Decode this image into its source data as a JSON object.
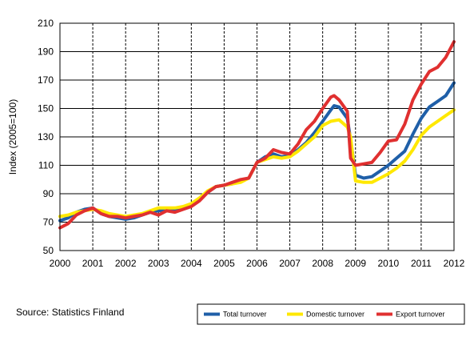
{
  "source": "Source: Statistics Finland",
  "chart_data": {
    "type": "line",
    "ylabel": "Index (2005=100)",
    "xlabel": "",
    "ylim": [
      50,
      210
    ],
    "yticks": [
      50,
      70,
      90,
      110,
      130,
      150,
      170,
      190,
      210
    ],
    "xlim": [
      2000,
      2012
    ],
    "xticks": [
      "2000",
      "2001",
      "2002",
      "2003",
      "2004",
      "2005",
      "2006",
      "2007",
      "2008",
      "2009",
      "2010",
      "2011",
      "2012"
    ],
    "grid": "dashed vertical at years, solid horizontal at y ticks",
    "legend_position": "bottom-right",
    "series": [
      {
        "name": "Total turnover",
        "color": "#1f5fa8",
        "x": [
          2000.0,
          2000.25,
          2000.5,
          2000.75,
          2001.0,
          2001.25,
          2001.5,
          2001.75,
          2002.0,
          2002.25,
          2002.5,
          2002.75,
          2003.0,
          2003.25,
          2003.5,
          2003.75,
          2004.0,
          2004.25,
          2004.5,
          2004.75,
          2005.0,
          2005.25,
          2005.5,
          2005.75,
          2006.0,
          2006.25,
          2006.5,
          2006.75,
          2007.0,
          2007.25,
          2007.5,
          2007.75,
          2008.0,
          2008.25,
          2008.35,
          2008.5,
          2008.75,
          2008.85,
          2009.0,
          2009.25,
          2009.5,
          2009.75,
          2010.0,
          2010.25,
          2010.5,
          2010.75,
          2011.0,
          2011.25,
          2011.5,
          2011.75,
          2012.0
        ],
        "values": [
          71,
          73,
          77,
          79,
          80,
          76,
          74,
          73,
          72,
          73,
          75,
          77,
          78,
          78,
          79,
          80,
          82,
          86,
          91,
          95,
          96,
          97,
          99,
          101,
          112,
          116,
          118,
          116,
          117,
          121,
          126,
          133,
          141,
          149,
          152,
          151,
          143,
          128,
          103,
          101,
          102,
          106,
          110,
          115,
          120,
          132,
          143,
          151,
          155,
          159,
          168
        ]
      },
      {
        "name": "Domestic turnover",
        "color": "#ffe800",
        "x": [
          2000.0,
          2000.25,
          2000.5,
          2000.75,
          2001.0,
          2001.25,
          2001.5,
          2001.75,
          2002.0,
          2002.25,
          2002.5,
          2002.75,
          2003.0,
          2003.25,
          2003.5,
          2003.75,
          2004.0,
          2004.25,
          2004.5,
          2004.75,
          2005.0,
          2005.25,
          2005.5,
          2005.75,
          2006.0,
          2006.25,
          2006.5,
          2006.75,
          2007.0,
          2007.25,
          2007.5,
          2007.75,
          2008.0,
          2008.25,
          2008.5,
          2008.75,
          2008.85,
          2009.0,
          2009.25,
          2009.5,
          2009.75,
          2010.0,
          2010.25,
          2010.5,
          2010.75,
          2011.0,
          2011.25,
          2011.5,
          2011.75,
          2012.0
        ],
        "values": [
          74,
          75,
          77,
          78,
          79,
          78,
          76,
          75,
          74,
          75,
          76,
          78,
          80,
          80,
          80,
          81,
          83,
          87,
          92,
          95,
          96,
          97,
          98,
          101,
          112,
          114,
          116,
          115,
          116,
          120,
          125,
          130,
          138,
          141,
          142,
          137,
          130,
          99,
          98,
          98,
          101,
          104,
          108,
          113,
          121,
          131,
          137,
          141,
          145,
          149
        ]
      },
      {
        "name": "Export turnover",
        "color": "#e03030",
        "x": [
          2000.0,
          2000.25,
          2000.5,
          2000.75,
          2001.0,
          2001.25,
          2001.5,
          2001.75,
          2002.0,
          2002.25,
          2002.5,
          2002.75,
          2003.0,
          2003.25,
          2003.5,
          2003.75,
          2004.0,
          2004.25,
          2004.5,
          2004.75,
          2005.0,
          2005.25,
          2005.5,
          2005.75,
          2006.0,
          2006.25,
          2006.5,
          2006.75,
          2007.0,
          2007.25,
          2007.5,
          2007.75,
          2008.0,
          2008.25,
          2008.35,
          2008.5,
          2008.75,
          2008.85,
          2009.0,
          2009.25,
          2009.5,
          2009.75,
          2010.0,
          2010.25,
          2010.5,
          2010.75,
          2011.0,
          2011.25,
          2011.5,
          2011.75,
          2012.0
        ],
        "values": [
          66,
          69,
          75,
          78,
          80,
          76,
          74,
          74,
          73,
          74,
          75,
          77,
          75,
          78,
          77,
          79,
          81,
          85,
          91,
          95,
          96,
          98,
          100,
          101,
          112,
          115,
          121,
          119,
          118,
          125,
          135,
          141,
          150,
          158,
          159,
          156,
          148,
          115,
          110,
          111,
          112,
          119,
          127,
          128,
          139,
          156,
          167,
          176,
          179,
          186,
          197
        ]
      }
    ]
  }
}
